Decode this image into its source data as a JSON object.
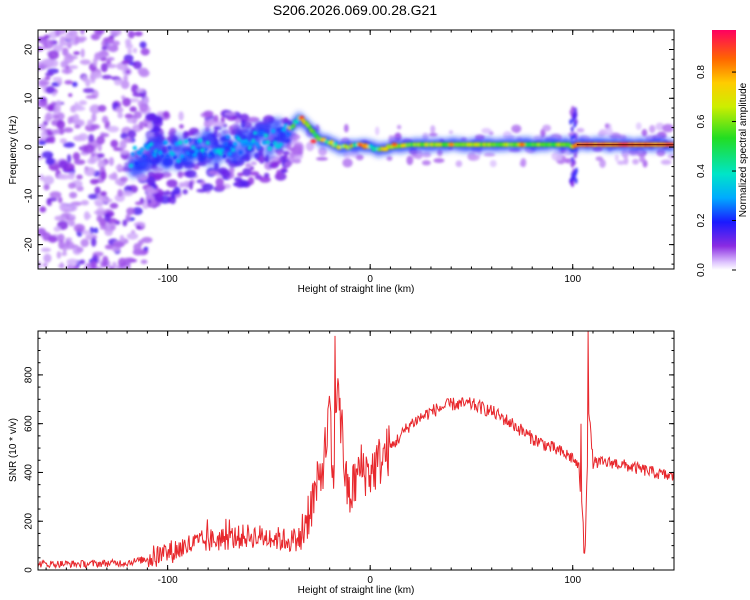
{
  "figure": {
    "title": "S206.2026.069.00.28.G21"
  },
  "colors": {
    "snr_line": "#e8282d",
    "ridge_dark": "#5a0a0a"
  },
  "chart_data": [
    {
      "type": "heatmap",
      "xlabel": "Height of straight line (km)",
      "ylabel": "Frequency (Hz)",
      "xlim": [
        -164,
        150
      ],
      "ylim": [
        -25,
        24
      ],
      "x_ticks": [
        "-100",
        "0",
        "100"
      ],
      "y_ticks": [
        "-20",
        "-10",
        "0",
        "10",
        "20"
      ],
      "colorbar": {
        "label": "Normalized spectral amplitude",
        "range": [
          0,
          0.97
        ],
        "ticks": [
          "0.0",
          "0.2",
          "0.4",
          "0.6",
          "0.8"
        ]
      },
      "ridge": {
        "x": [
          -115,
          -105,
          -95,
          -85,
          -75,
          -65,
          -55,
          -45,
          -40,
          -35,
          -30,
          -25,
          -20,
          -15,
          -10,
          -5,
          0,
          5,
          10,
          20,
          40,
          60,
          80,
          98,
          100,
          102,
          110,
          130,
          150
        ],
        "y": [
          -2,
          -1,
          -1,
          0,
          0,
          0.5,
          1,
          2,
          3.5,
          6,
          4,
          1.5,
          1,
          0,
          0,
          0.5,
          0,
          -0.5,
          0,
          0.5,
          0.5,
          0.5,
          0.5,
          0.5,
          0,
          0.5,
          0.5,
          0.5,
          0.5
        ]
      }
    },
    {
      "type": "line",
      "xlabel": "Height of straight line (km)",
      "ylabel": "SNR (10 * v/v)",
      "xlim": [
        -164,
        150
      ],
      "ylim": [
        0,
        980
      ],
      "x_ticks": [
        "-100",
        "0",
        "100"
      ],
      "y_ticks": [
        "0",
        "200",
        "400",
        "600",
        "800"
      ],
      "series": [
        {
          "x": [
            -164,
            -140,
            -120,
            -110,
            -100,
            -90,
            -80,
            -70,
            -60,
            -50,
            -40,
            -35,
            -30,
            -25,
            -22,
            -20,
            -18,
            -16,
            -15,
            -12,
            -10,
            -5,
            0,
            10,
            20,
            30,
            40,
            50,
            60,
            70,
            80,
            90,
            100,
            103,
            105,
            106,
            107,
            108,
            110,
            120,
            130,
            140,
            150
          ],
          "y": [
            25,
            25,
            30,
            45,
            70,
            100,
            120,
            130,
            140,
            135,
            120,
            130,
            250,
            360,
            500,
            640,
            290,
            830,
            700,
            350,
            300,
            420,
            400,
            500,
            600,
            650,
            680,
            680,
            650,
            600,
            540,
            500,
            460,
            420,
            200,
            60,
            380,
            650,
            440,
            440,
            420,
            400,
            380
          ],
          "spikes": [
            {
              "x": -17.5,
              "y": 960
            },
            {
              "x": -14.5,
              "y": 520
            },
            {
              "x": -20.5,
              "y": 680
            },
            {
              "x": 107.5,
              "y": 980
            },
            {
              "x": 105.5,
              "y": 70
            },
            {
              "x": 104,
              "y": 600
            }
          ]
        }
      ]
    }
  ]
}
